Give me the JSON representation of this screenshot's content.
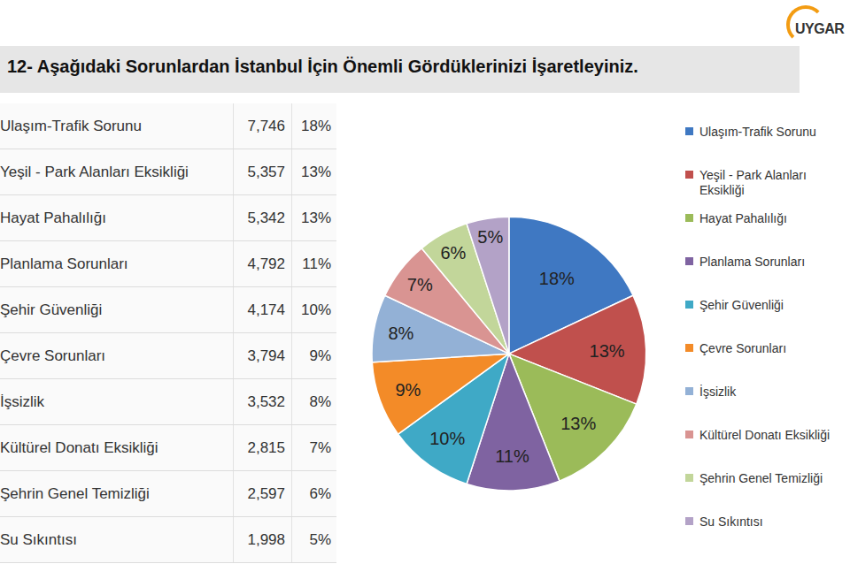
{
  "logo": "UYGAR",
  "chart_data": {
    "type": "pie",
    "title": "12- Aşağıdaki Sorunlardan İstanbul İçin Önemli Gördüklerinizi İşaretleyiniz.",
    "categories": [
      "Ulaşım-Trafik Sorunu",
      "Yeşil - Park Alanları Eksikliği",
      "Hayat Pahalılığı",
      "Planlama Sorunları",
      "Şehir Güvenliği",
      "Çevre Sorunları",
      "İşsizlik",
      "Kültürel Donatı Eksikliği",
      "Şehrin Genel Temizliği",
      "Su Sıkıntısı"
    ],
    "values": [
      18,
      13,
      13,
      11,
      10,
      9,
      8,
      7,
      6,
      5
    ],
    "value_labels": [
      "18%",
      "13%",
      "13%",
      "11%",
      "10%",
      "9%",
      "8%",
      "7%",
      "6%",
      "5%"
    ],
    "counts": [
      7746,
      5357,
      5342,
      4792,
      4174,
      3794,
      3532,
      2815,
      2597,
      1998
    ],
    "count_labels": [
      "7,746",
      "5,357",
      "5,342",
      "4,792",
      "4,174",
      "3,794",
      "3,532",
      "2,815",
      "2,597",
      "1,998"
    ],
    "colors": [
      "#3f78c2",
      "#c0504d",
      "#9bbb59",
      "#7f63a1",
      "#3fa9c6",
      "#f38b28",
      "#93b1d6",
      "#d99492",
      "#c2d69a",
      "#b3a2c7"
    ],
    "data_labels": true,
    "legend": "right"
  }
}
